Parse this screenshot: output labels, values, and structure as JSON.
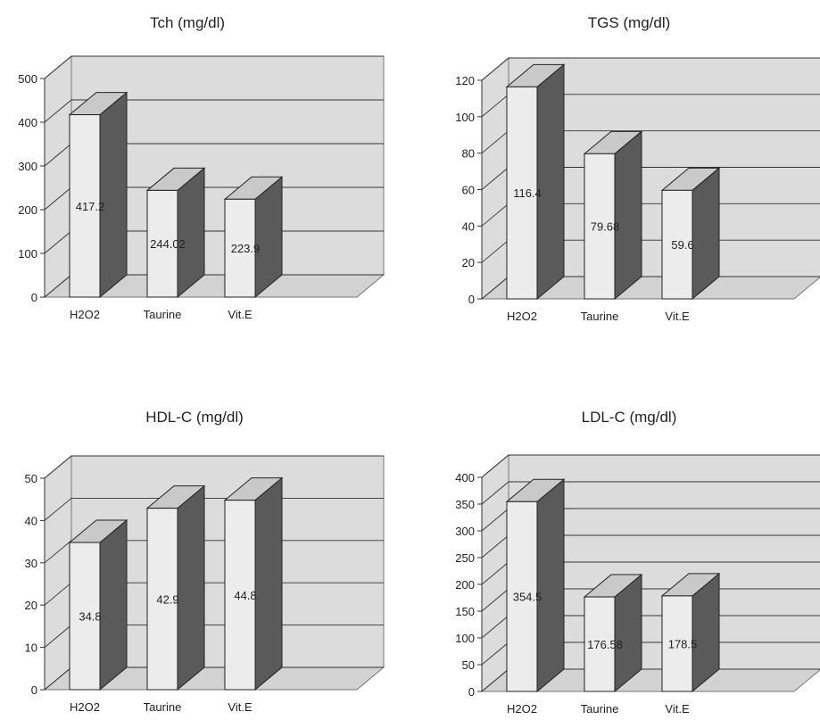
{
  "chart_data": [
    {
      "type": "bar",
      "title": "Tch (mg/dl)",
      "categories": [
        "H2O2",
        "Taurine",
        "Vit.E"
      ],
      "values": [
        417.2,
        244.02,
        223.9
      ],
      "value_labels": [
        "417.2",
        "244.02",
        "223.9"
      ],
      "ylim": [
        0,
        500
      ],
      "yticks": [
        0,
        100,
        200,
        300,
        400,
        500
      ],
      "grid": true,
      "three_d": true
    },
    {
      "type": "bar",
      "title": "TGS (mg/dl)",
      "categories": [
        "H2O2",
        "Taurine",
        "Vit.E"
      ],
      "values": [
        116.4,
        79.68,
        59.6
      ],
      "value_labels": [
        "116.4",
        "79.68",
        "59.6"
      ],
      "ylim": [
        0,
        120
      ],
      "yticks": [
        0,
        20,
        40,
        60,
        80,
        100,
        120
      ],
      "grid": true,
      "three_d": true
    },
    {
      "type": "bar",
      "title": "HDL-C (mg/dl)",
      "categories": [
        "H2O2",
        "Taurine",
        "Vit.E"
      ],
      "values": [
        34.8,
        42.9,
        44.8
      ],
      "value_labels": [
        "34.8",
        "42.9",
        "44.8"
      ],
      "ylim": [
        0,
        50
      ],
      "yticks": [
        0,
        10,
        20,
        30,
        40,
        50
      ],
      "grid": true,
      "three_d": true
    },
    {
      "type": "bar",
      "title": "LDL-C (mg/dl)",
      "categories": [
        "H2O2",
        "Taurine",
        "Vit.E"
      ],
      "values": [
        354.5,
        176.58,
        178.5
      ],
      "value_labels": [
        "354.5",
        "176.58",
        "178.5"
      ],
      "ylim": [
        0,
        400
      ],
      "yticks": [
        0,
        50,
        100,
        150,
        200,
        250,
        300,
        350,
        400
      ],
      "grid": true,
      "three_d": true
    }
  ],
  "colors": {
    "bar_front": "#ececec",
    "bar_top": "#c9c9c9",
    "bar_side": "#5a5a5a",
    "wall": "#dcdcdc",
    "floor": "#d2d2d2",
    "grid": "#333333"
  }
}
